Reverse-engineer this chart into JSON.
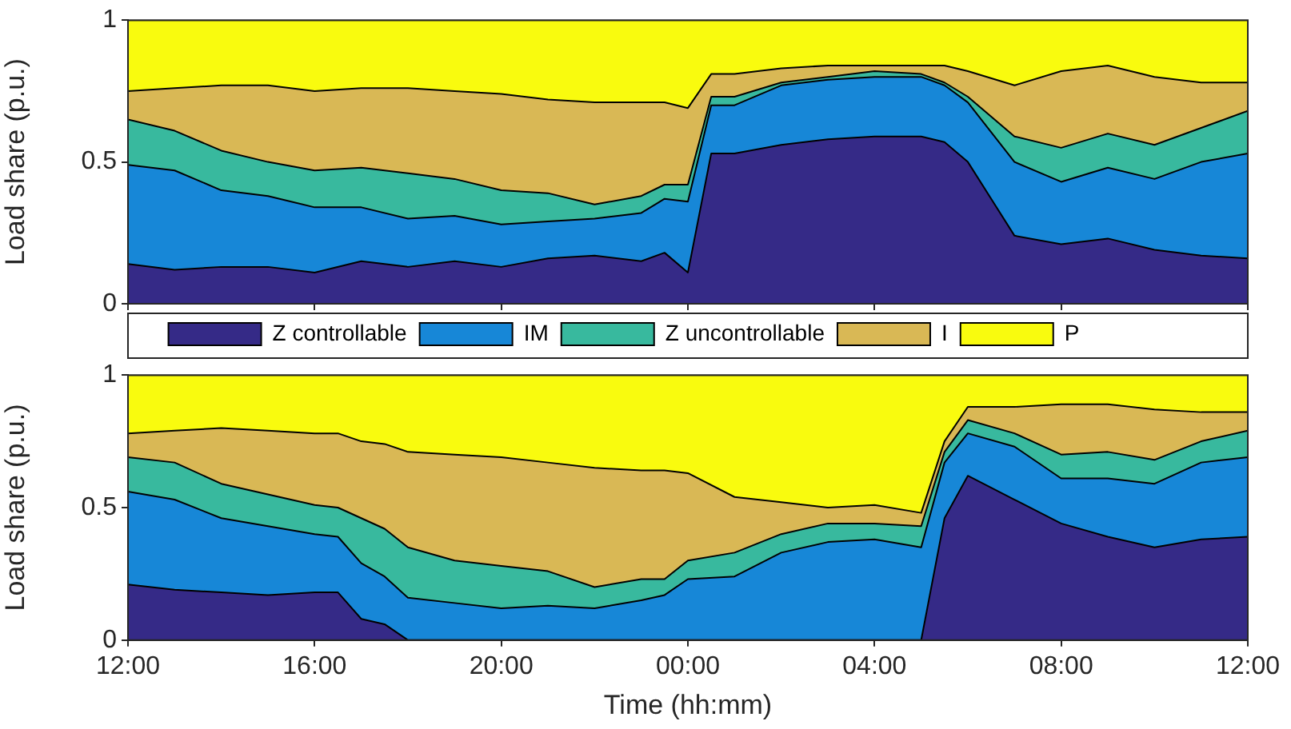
{
  "chart_data": [
    {
      "type": "area",
      "stacked": true,
      "ylabel": "Load share (p.u.)",
      "legend": "bottom",
      "tick_labels": "y",
      "grid": false,
      "x": [
        "2000-01-01T12:00",
        "2000-01-01T13:00",
        "2000-01-01T14:00",
        "2000-01-01T15:00",
        "2000-01-01T16:00",
        "2000-01-01T17:00",
        "2000-01-01T18:00",
        "2000-01-01T19:00",
        "2000-01-01T20:00",
        "2000-01-01T21:00",
        "2000-01-01T22:00",
        "2000-01-01T23:00",
        "2000-01-01T23:30",
        "2000-01-02T00:00",
        "2000-01-02T00:30",
        "2000-01-02T01:00",
        "2000-01-02T02:00",
        "2000-01-02T03:00",
        "2000-01-02T04:00",
        "2000-01-02T05:00",
        "2000-01-02T05:30",
        "2000-01-02T06:00",
        "2000-01-02T07:00",
        "2000-01-02T08:00",
        "2000-01-02T09:00",
        "2000-01-02T10:00",
        "2000-01-02T11:00",
        "2000-01-02T12:00"
      ],
      "xlim": [
        "2000-01-01T12:00",
        "2000-01-02T12:00"
      ],
      "xticks": [
        "2000-01-01T12:00",
        "2000-01-01T16:00",
        "2000-01-01T20:00",
        "2000-01-02T00:00",
        "2000-01-02T04:00",
        "2000-01-02T08:00",
        "2000-01-02T12:00"
      ],
      "ylim": [
        0,
        1
      ],
      "yticks": [
        0,
        0.5,
        1
      ],
      "series": [
        {
          "name": "Z controllable",
          "color": "#352a87",
          "values": [
            0.14,
            0.12,
            0.13,
            0.13,
            0.11,
            0.15,
            0.13,
            0.15,
            0.13,
            0.16,
            0.17,
            0.15,
            0.18,
            0.11,
            0.53,
            0.53,
            0.56,
            0.58,
            0.59,
            0.59,
            0.57,
            0.5,
            0.24,
            0.21,
            0.23,
            0.19,
            0.17,
            0.16
          ]
        },
        {
          "name": "IM",
          "color": "#1787d7",
          "values": [
            0.35,
            0.35,
            0.27,
            0.25,
            0.23,
            0.19,
            0.17,
            0.16,
            0.15,
            0.13,
            0.13,
            0.17,
            0.19,
            0.25,
            0.17,
            0.17,
            0.21,
            0.21,
            0.21,
            0.21,
            0.2,
            0.21,
            0.26,
            0.22,
            0.25,
            0.25,
            0.33,
            0.37
          ]
        },
        {
          "name": "Z uncontrollable",
          "color": "#38b99e",
          "values": [
            0.16,
            0.14,
            0.14,
            0.12,
            0.13,
            0.14,
            0.16,
            0.13,
            0.12,
            0.1,
            0.05,
            0.06,
            0.05,
            0.06,
            0.03,
            0.03,
            0.01,
            0.01,
            0.02,
            0.01,
            0.01,
            0.02,
            0.09,
            0.12,
            0.12,
            0.12,
            0.12,
            0.15
          ]
        },
        {
          "name": "I",
          "color": "#d9b855",
          "values": [
            0.1,
            0.15,
            0.23,
            0.27,
            0.28,
            0.28,
            0.3,
            0.31,
            0.34,
            0.33,
            0.36,
            0.33,
            0.29,
            0.27,
            0.08,
            0.08,
            0.05,
            0.04,
            0.02,
            0.03,
            0.06,
            0.09,
            0.18,
            0.27,
            0.24,
            0.24,
            0.16,
            0.1
          ]
        },
        {
          "name": "P",
          "color": "#f9fb0e",
          "values": [
            0.25,
            0.24,
            0.23,
            0.23,
            0.25,
            0.24,
            0.24,
            0.25,
            0.26,
            0.28,
            0.29,
            0.29,
            0.29,
            0.31,
            0.19,
            0.19,
            0.17,
            0.16,
            0.16,
            0.16,
            0.16,
            0.18,
            0.23,
            0.18,
            0.16,
            0.2,
            0.22,
            0.22
          ]
        }
      ]
    },
    {
      "type": "area",
      "stacked": true,
      "ylabel": "Load share (p.u.)",
      "xlabel": "Time (hh:mm)",
      "grid": false,
      "x": [
        "2000-01-01T12:00",
        "2000-01-01T13:00",
        "2000-01-01T14:00",
        "2000-01-01T15:00",
        "2000-01-01T16:00",
        "2000-01-01T16:30",
        "2000-01-01T17:00",
        "2000-01-01T17:30",
        "2000-01-01T18:00",
        "2000-01-01T19:00",
        "2000-01-01T20:00",
        "2000-01-01T21:00",
        "2000-01-01T22:00",
        "2000-01-01T23:00",
        "2000-01-01T23:30",
        "2000-01-02T00:00",
        "2000-01-02T01:00",
        "2000-01-02T02:00",
        "2000-01-02T03:00",
        "2000-01-02T04:00",
        "2000-01-02T05:00",
        "2000-01-02T05:30",
        "2000-01-02T06:00",
        "2000-01-02T07:00",
        "2000-01-02T08:00",
        "2000-01-02T09:00",
        "2000-01-02T10:00",
        "2000-01-02T11:00",
        "2000-01-02T12:00"
      ],
      "xlim": [
        "2000-01-01T12:00",
        "2000-01-02T12:00"
      ],
      "xticks": [
        {
          "value": "2000-01-01T12:00",
          "label": "12:00"
        },
        {
          "value": "2000-01-01T16:00",
          "label": "16:00"
        },
        {
          "value": "2000-01-01T20:00",
          "label": "20:00"
        },
        {
          "value": "2000-01-02T00:00",
          "label": "00:00"
        },
        {
          "value": "2000-01-02T04:00",
          "label": "04:00"
        },
        {
          "value": "2000-01-02T08:00",
          "label": "08:00"
        },
        {
          "value": "2000-01-02T12:00",
          "label": "12:00"
        }
      ],
      "ylim": [
        0,
        1
      ],
      "yticks": [
        0,
        0.5,
        1
      ],
      "series": [
        {
          "color": "#352a87",
          "values": [
            0.21,
            0.19,
            0.18,
            0.17,
            0.18,
            0.18,
            0.08,
            0.06,
            0,
            0,
            0,
            0,
            0,
            0,
            0,
            0,
            0,
            0,
            0,
            0,
            0,
            0.46,
            0.62,
            0.53,
            0.44,
            0.39,
            0.35,
            0.38,
            0.39
          ]
        },
        {
          "color": "#1787d7",
          "values": [
            0.35,
            0.34,
            0.28,
            0.26,
            0.22,
            0.21,
            0.21,
            0.18,
            0.16,
            0.14,
            0.12,
            0.13,
            0.12,
            0.15,
            0.17,
            0.23,
            0.24,
            0.33,
            0.37,
            0.38,
            0.35,
            0.21,
            0.16,
            0.2,
            0.17,
            0.22,
            0.24,
            0.29,
            0.3
          ]
        },
        {
          "color": "#38b99e",
          "values": [
            0.13,
            0.14,
            0.13,
            0.12,
            0.11,
            0.11,
            0.17,
            0.18,
            0.19,
            0.16,
            0.16,
            0.13,
            0.08,
            0.08,
            0.06,
            0.07,
            0.09,
            0.07,
            0.07,
            0.06,
            0.08,
            0.04,
            0.05,
            0.05,
            0.09,
            0.1,
            0.09,
            0.08,
            0.1
          ]
        },
        {
          "color": "#d9b855",
          "values": [
            0.09,
            0.12,
            0.21,
            0.24,
            0.27,
            0.28,
            0.29,
            0.32,
            0.36,
            0.4,
            0.41,
            0.41,
            0.45,
            0.41,
            0.41,
            0.33,
            0.21,
            0.12,
            0.06,
            0.07,
            0.05,
            0.04,
            0.05,
            0.1,
            0.19,
            0.18,
            0.19,
            0.11,
            0.07
          ]
        },
        {
          "color": "#f9fb0e",
          "values": [
            0.22,
            0.21,
            0.2,
            0.21,
            0.22,
            0.22,
            0.25,
            0.26,
            0.29,
            0.3,
            0.31,
            0.33,
            0.35,
            0.36,
            0.36,
            0.37,
            0.46,
            0.48,
            0.5,
            0.49,
            0.52,
            0.25,
            0.12,
            0.12,
            0.11,
            0.11,
            0.13,
            0.14,
            0.14
          ]
        }
      ]
    }
  ]
}
